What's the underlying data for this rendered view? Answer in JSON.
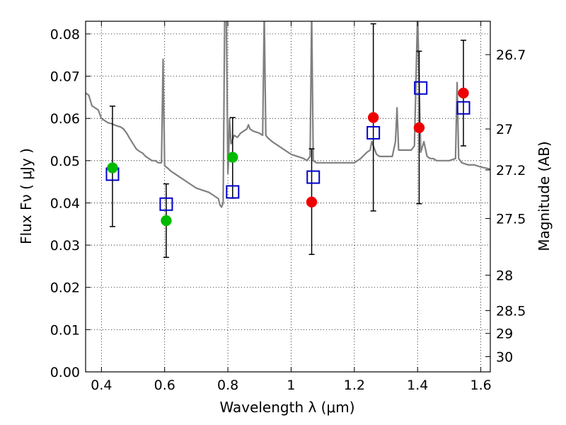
{
  "chart_data": {
    "type": "scatter",
    "title": "",
    "xlabel": "Wavelength  λ (μm)",
    "ylabel": "Flux  Fν  ( μJy )",
    "y2label": "Magnitude (AB)",
    "xlim": [
      0.35,
      1.63
    ],
    "ylim": [
      0.0,
      0.083
    ],
    "grid": true,
    "x_ticks": [
      0.4,
      0.6,
      0.8,
      1.0,
      1.2,
      1.4,
      1.6
    ],
    "x_tick_labels": [
      "0.4",
      "0.6",
      "0.8",
      "1",
      "1.2",
      "1.4",
      "1.6"
    ],
    "y_ticks": [
      0.0,
      0.01,
      0.02,
      0.03,
      0.04,
      0.05,
      0.06,
      0.07,
      0.08
    ],
    "y_tick_labels": [
      "0.00",
      "0.01",
      "0.02",
      "0.03",
      "0.04",
      "0.05",
      "0.06",
      "0.07",
      "0.08"
    ],
    "magnitude_ticks": [
      {
        "label": "26.7",
        "flux": 0.0751
      },
      {
        "label": "27",
        "flux": 0.0575
      },
      {
        "label": "27.2",
        "flux": 0.0478
      },
      {
        "label": "27.5",
        "flux": 0.0363
      },
      {
        "label": "28",
        "flux": 0.0229
      },
      {
        "label": "28.5",
        "flux": 0.0145
      },
      {
        "label": "29",
        "flux": 0.0091
      },
      {
        "label": "30",
        "flux": 0.0036
      }
    ],
    "colors": {
      "template": "#808080",
      "model_box": "#0000cc",
      "detection": "#00bb00",
      "measurement": "#ee0000",
      "errorbar": "#000000"
    },
    "series": [
      {
        "name": "template spectrum",
        "style": "line",
        "x": [
          0.35,
          0.36,
          0.37,
          0.38,
          0.39,
          0.4,
          0.41,
          0.42,
          0.43,
          0.44,
          0.45,
          0.46,
          0.47,
          0.48,
          0.49,
          0.5,
          0.51,
          0.52,
          0.53,
          0.54,
          0.55,
          0.56,
          0.57,
          0.58,
          0.59,
          0.595,
          0.6,
          0.605,
          0.61,
          0.62,
          0.63,
          0.64,
          0.66,
          0.68,
          0.7,
          0.72,
          0.74,
          0.75,
          0.76,
          0.77,
          0.775,
          0.78,
          0.785,
          0.79,
          0.795,
          0.8,
          0.802,
          0.805,
          0.81,
          0.815,
          0.82,
          0.83,
          0.84,
          0.85,
          0.86,
          0.865,
          0.87,
          0.88,
          0.9,
          0.91,
          0.915,
          0.92,
          0.925,
          0.94,
          0.96,
          0.98,
          1.0,
          1.02,
          1.04,
          1.05,
          1.06,
          1.065,
          1.07,
          1.08,
          1.1,
          1.12,
          1.14,
          1.16,
          1.18,
          1.2,
          1.22,
          1.24,
          1.25,
          1.255,
          1.26,
          1.27,
          1.28,
          1.3,
          1.32,
          1.33,
          1.335,
          1.34,
          1.36,
          1.38,
          1.39,
          1.4,
          1.41,
          1.42,
          1.43,
          1.44,
          1.45,
          1.46,
          1.48,
          1.5,
          1.52,
          1.525,
          1.53,
          1.54,
          1.56,
          1.58,
          1.6,
          1.63
        ],
        "y": [
          0.066,
          0.0655,
          0.063,
          0.0625,
          0.062,
          0.06,
          0.0595,
          0.059,
          0.0588,
          0.0585,
          0.0582,
          0.058,
          0.0575,
          0.0565,
          0.0552,
          0.054,
          0.0528,
          0.0522,
          0.0518,
          0.051,
          0.0505,
          0.05,
          0.05,
          0.0495,
          0.0495,
          0.074,
          0.0488,
          0.0485,
          0.0482,
          0.0475,
          0.047,
          0.0465,
          0.0455,
          0.0445,
          0.0435,
          0.043,
          0.0425,
          0.042,
          0.0415,
          0.041,
          0.0395,
          0.039,
          0.04,
          0.085,
          0.085,
          0.047,
          0.05,
          0.06,
          0.054,
          0.055,
          0.056,
          0.0555,
          0.0565,
          0.057,
          0.0575,
          0.0585,
          0.0575,
          0.057,
          0.0565,
          0.056,
          0.085,
          0.056,
          0.0555,
          0.0545,
          0.0535,
          0.0525,
          0.0515,
          0.051,
          0.0505,
          0.05,
          0.051,
          0.085,
          0.05,
          0.0495,
          0.0495,
          0.0495,
          0.0495,
          0.0495,
          0.0495,
          0.0495,
          0.0505,
          0.052,
          0.0525,
          0.0545,
          0.0535,
          0.0515,
          0.051,
          0.051,
          0.051,
          0.0545,
          0.0625,
          0.0525,
          0.0525,
          0.0525,
          0.0535,
          0.085,
          0.052,
          0.0545,
          0.051,
          0.0505,
          0.0505,
          0.05,
          0.05,
          0.05,
          0.0505,
          0.0685,
          0.0505,
          0.0495,
          0.049,
          0.049,
          0.0485,
          0.048
        ]
      },
      {
        "name": "model fluxes",
        "style": "open-square",
        "x": [
          0.435,
          0.605,
          0.815,
          1.07,
          1.26,
          1.41,
          1.545
        ],
        "y": [
          0.0468,
          0.0397,
          0.0426,
          0.0461,
          0.0566,
          0.0672,
          0.0625
        ]
      },
      {
        "name": "detections (green)",
        "style": "filled-circle",
        "x": [
          0.435,
          0.605,
          0.815
        ],
        "y": [
          0.0483,
          0.0358,
          0.0508
        ]
      },
      {
        "name": "measurements (red)",
        "style": "filled-circle",
        "x": [
          1.065,
          1.26,
          1.405,
          1.545
        ],
        "y": [
          0.0402,
          0.0602,
          0.0578,
          0.066
        ]
      },
      {
        "name": "error bars",
        "style": "errorbar",
        "x": [
          0.435,
          0.605,
          0.815,
          1.065,
          1.26,
          1.405,
          1.545
        ],
        "ylow": [
          0.0344,
          0.0271,
          0.0411,
          0.0278,
          0.0381,
          0.0398,
          0.0535
        ],
        "yhigh": [
          0.0629,
          0.0445,
          0.0602,
          0.0528,
          0.0824,
          0.0759,
          0.0785
        ]
      }
    ]
  }
}
